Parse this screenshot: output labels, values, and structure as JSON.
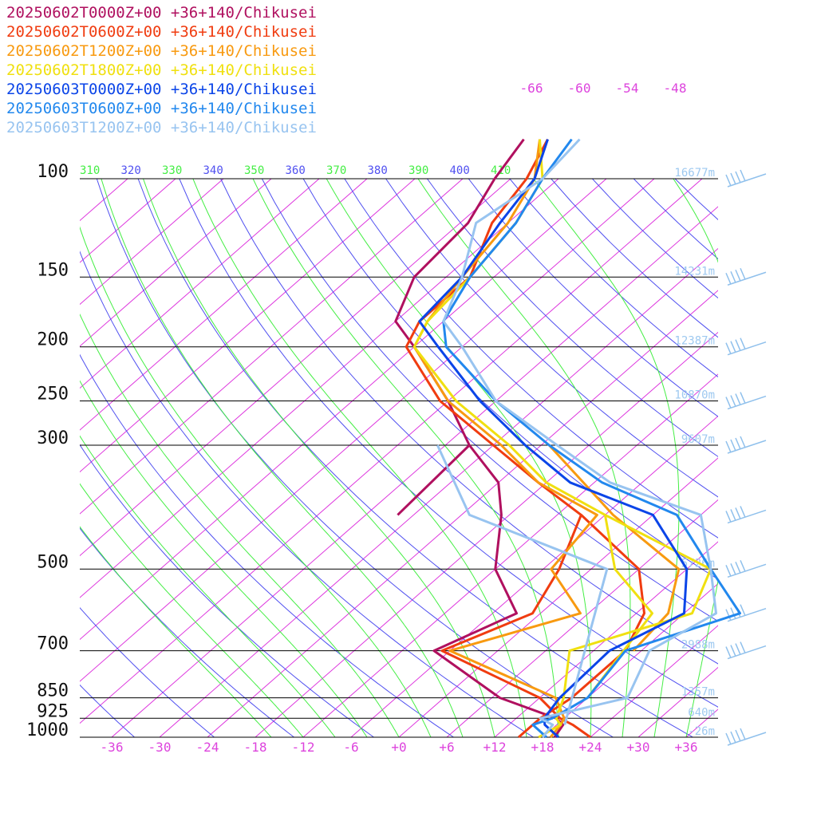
{
  "chart_data": {
    "type": "line",
    "title": "",
    "xlabel": "",
    "ylabel": "",
    "yscale": "log",
    "xlim": [
      -40,
      40
    ],
    "ylim": [
      1000,
      100
    ],
    "skew_per_decade": 80,
    "isotherm_interval": 6,
    "pressure_levels": [
      100,
      150,
      200,
      250,
      300,
      500,
      700,
      850,
      925,
      1000
    ],
    "pressure_labels": [
      "100",
      "150",
      "200",
      "250",
      "300",
      "500",
      "700",
      "850",
      "925",
      "1000"
    ],
    "temperature_ticks": [
      -36,
      -30,
      -24,
      -18,
      -12,
      -6,
      0,
      6,
      12,
      18,
      24,
      30,
      36
    ],
    "temperature_labels": [
      "-36",
      "-30",
      "-24",
      "-18",
      "-12",
      "-6",
      "+0",
      "+6",
      "+12",
      "+18",
      "+24",
      "+30",
      "+36"
    ],
    "upper_temperature_ticks": [
      -66,
      -60,
      -54,
      -48
    ],
    "upper_temperature_labels": [
      "-66",
      "-60",
      "-54",
      "-48"
    ],
    "theta_labels": [
      "310",
      "320",
      "330",
      "340",
      "350",
      "360",
      "370",
      "380",
      "390",
      "400",
      "410"
    ],
    "height_labels": [
      {
        "p": 100,
        "text": "16677m"
      },
      {
        "p": 150,
        "text": "14231m"
      },
      {
        "p": 200,
        "text": "12387m"
      },
      {
        "p": 250,
        "text": "10870m"
      },
      {
        "p": 300,
        "text": "9607m"
      },
      {
        "p": 500,
        "text": "5726m"
      },
      {
        "p": 700,
        "text": "2988m"
      },
      {
        "p": 850,
        "text": "1357m"
      },
      {
        "p": 925,
        "text": "640m"
      },
      {
        "p": 1000,
        "text": "-26m"
      }
    ],
    "wind_barbs": [
      100,
      150,
      200,
      250,
      300,
      400,
      500,
      600,
      700,
      1000
    ],
    "grid": true,
    "legend": "top-left",
    "colors": {
      "isotherm": "#dd33dd",
      "dry_adiabat": "#5050f0",
      "moist_adiabat": "#44ee44",
      "isobar": "#000000",
      "height_label": "#9ec9f0",
      "wind_barb": "#8fc0ec",
      "axis_label": "#dd44dd"
    },
    "series": [
      {
        "name": "20250602T0000Z+00 +36+140/Chikusei",
        "color": "#b0105f",
        "temp": [
          [
            1000,
            19.5
          ],
          [
            950,
            18.8
          ],
          [
            925,
            17
          ],
          [
            850,
            7
          ],
          [
            700,
            -8
          ],
          [
            600,
            -3
          ],
          [
            500,
            -12
          ],
          [
            400,
            -19
          ],
          [
            350,
            -24
          ],
          [
            300,
            -33
          ],
          [
            250,
            -42
          ],
          [
            200,
            -54
          ],
          [
            180,
            -60
          ],
          [
            150,
            -64
          ],
          [
            120,
            -65
          ],
          [
            100,
            -68
          ],
          [
            85,
            -70
          ]
        ],
        "dew": [
          [
            400,
            -32
          ],
          [
            300,
            -33
          ]
        ]
      },
      {
        "name": "20250602T0600Z+00 +36+140/Chikusei",
        "color": "#f03c10",
        "temp": [
          [
            1000,
            24
          ],
          [
            950,
            20
          ],
          [
            925,
            17.5
          ],
          [
            850,
            12
          ],
          [
            700,
            -7
          ],
          [
            600,
            -1
          ],
          [
            500,
            -4
          ],
          [
            400,
            -9
          ],
          [
            350,
            -19
          ],
          [
            300,
            -30
          ],
          [
            250,
            -43
          ],
          [
            200,
            -55
          ],
          [
            180,
            -57
          ],
          [
            150,
            -57
          ],
          [
            120,
            -62
          ],
          [
            100,
            -64
          ],
          [
            85,
            -67
          ]
        ],
        "dew": [
          [
            1000,
            15
          ],
          [
            925,
            15
          ],
          [
            850,
            16
          ],
          [
            700,
            16
          ],
          [
            600,
            13
          ],
          [
            500,
            6
          ],
          [
            400,
            -9
          ]
        ]
      },
      {
        "name": "20250602T1200Z+00 +36+140/Chikusei",
        "color": "#f89a10",
        "temp": [
          [
            1000,
            19
          ],
          [
            950,
            18.5
          ],
          [
            925,
            18
          ],
          [
            850,
            14
          ],
          [
            700,
            -6
          ],
          [
            600,
            5
          ],
          [
            500,
            -5
          ],
          [
            400,
            -7
          ],
          [
            350,
            -19
          ],
          [
            300,
            -29
          ],
          [
            250,
            -42
          ],
          [
            200,
            -54
          ],
          [
            180,
            -56
          ],
          [
            150,
            -58
          ],
          [
            120,
            -60
          ],
          [
            100,
            -63
          ],
          [
            85,
            -68
          ]
        ],
        "dew": [
          [
            700,
            17
          ],
          [
            600,
            16
          ],
          [
            500,
            11
          ],
          [
            400,
            -5
          ],
          [
            300,
            -23
          ]
        ]
      },
      {
        "name": "20250602T1800Z+00 +36+140/Chikusei",
        "color": "#f0e010",
        "temp": [
          [
            1000,
            17.5
          ],
          [
            950,
            18.5
          ],
          [
            925,
            17
          ],
          [
            850,
            15
          ],
          [
            700,
            9
          ],
          [
            600,
            19
          ],
          [
            500,
            15
          ],
          [
            400,
            -6
          ],
          [
            350,
            -18
          ],
          [
            300,
            -28
          ],
          [
            250,
            -41
          ],
          [
            200,
            -54
          ],
          [
            180,
            -56
          ],
          [
            150,
            -57
          ],
          [
            120,
            -59
          ],
          [
            100,
            -62
          ],
          [
            85,
            -68
          ]
        ],
        "dew": [
          [
            850,
            18
          ],
          [
            600,
            14
          ],
          [
            500,
            3
          ],
          [
            400,
            -6
          ]
        ]
      },
      {
        "name": "20250603T0000Z+00 +36+140/Chikusei",
        "color": "#0b45e8",
        "temp": [
          [
            1000,
            20
          ],
          [
            950,
            16.5
          ],
          [
            925,
            15.5
          ],
          [
            850,
            14.5
          ],
          [
            700,
            14
          ],
          [
            600,
            18
          ],
          [
            500,
            12
          ],
          [
            400,
            0
          ],
          [
            350,
            -15
          ],
          [
            300,
            -26
          ],
          [
            250,
            -38
          ],
          [
            200,
            -51
          ],
          [
            180,
            -57
          ],
          [
            150,
            -58
          ],
          [
            120,
            -61
          ],
          [
            100,
            -63
          ],
          [
            85,
            -67
          ]
        ],
        "dew": [
          [
            1000,
            17
          ]
        ]
      },
      {
        "name": "20250603T0600Z+00 +36+140/Chikusei",
        "color": "#2288ee",
        "temp": [
          [
            1000,
            18.5
          ],
          [
            950,
            15
          ],
          [
            925,
            16.5
          ],
          [
            850,
            18
          ],
          [
            700,
            16
          ],
          [
            600,
            25
          ],
          [
            500,
            15
          ],
          [
            400,
            3
          ],
          [
            350,
            -11
          ],
          [
            300,
            -23
          ],
          [
            250,
            -36
          ],
          [
            200,
            -50
          ],
          [
            180,
            -54
          ],
          [
            150,
            -57
          ],
          [
            120,
            -59
          ],
          [
            100,
            -62
          ],
          [
            85,
            -64
          ]
        ],
        "dew": [
          [
            1000,
            16
          ]
        ]
      },
      {
        "name": "20250603T1200Z+00 +36+140/Chikusei",
        "color": "#98c4f0",
        "temp": [
          [
            1000,
            18
          ],
          [
            950,
            17.5
          ],
          [
            925,
            15
          ],
          [
            850,
            23
          ],
          [
            700,
            19
          ],
          [
            600,
            22
          ],
          [
            500,
            15
          ],
          [
            400,
            6
          ],
          [
            350,
            -10
          ],
          [
            300,
            -22
          ],
          [
            250,
            -36
          ],
          [
            200,
            -48
          ],
          [
            180,
            -54
          ],
          [
            150,
            -58
          ],
          [
            120,
            -64
          ],
          [
            100,
            -62
          ],
          [
            85,
            -63
          ]
        ],
        "dew": [
          [
            950,
            19
          ],
          [
            500,
            2
          ],
          [
            400,
            -23
          ],
          [
            300,
            -37
          ]
        ]
      }
    ]
  }
}
